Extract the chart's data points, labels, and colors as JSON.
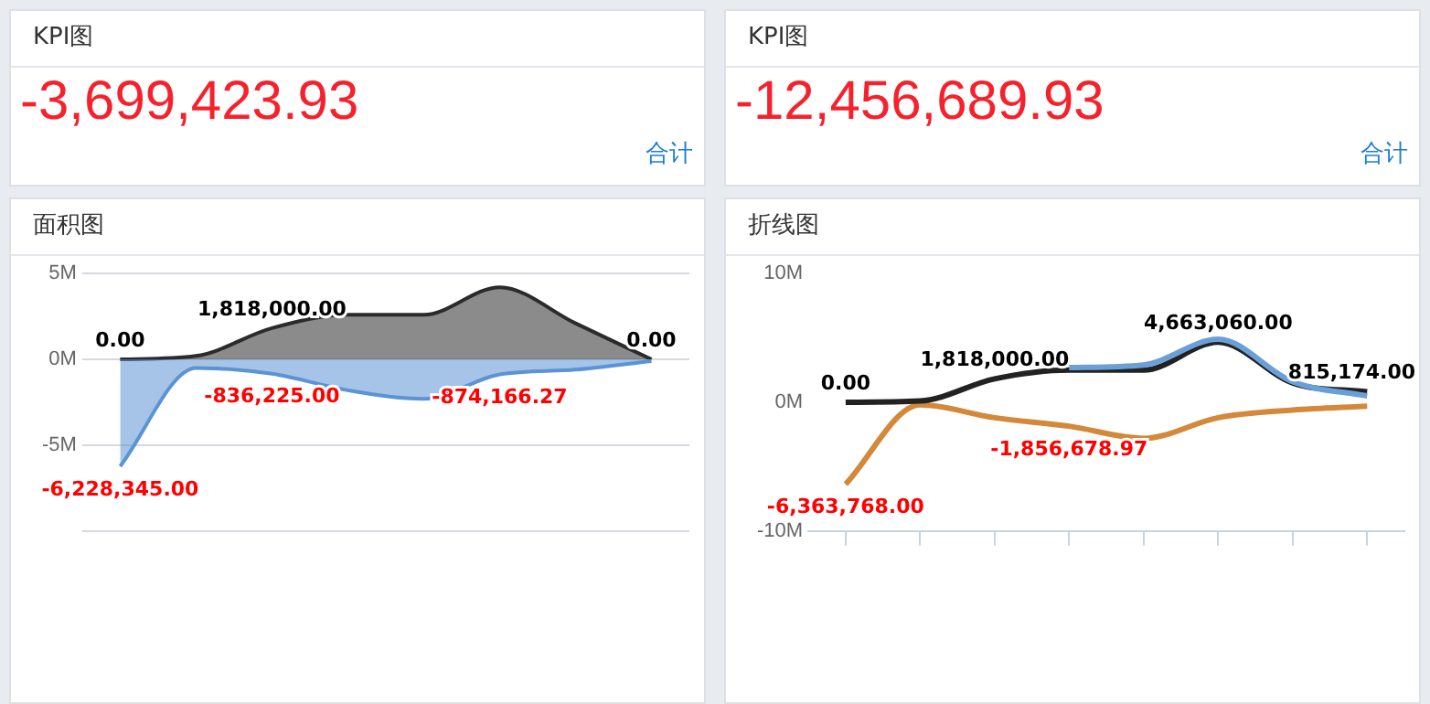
{
  "chart_data": [
    {
      "type": "other",
      "title": "KPI图",
      "annotations": [
        "-3,699,423.93",
        "合计"
      ]
    },
    {
      "type": "other",
      "title": "KPI图",
      "annotations": [
        "-12,456,689.93",
        "合计"
      ]
    },
    {
      "type": "area",
      "title": "面积图",
      "categories": [
        null,
        null,
        null,
        null,
        null,
        null,
        null,
        null
      ],
      "ylim": [
        -10000000,
        5000000
      ],
      "yticks": [
        {
          "value": -10000000,
          "label": null
        },
        {
          "value": -5000000,
          "label": "-5M"
        },
        {
          "value": 0,
          "label": "0M"
        },
        {
          "value": 5000000,
          "label": "5M"
        }
      ],
      "grid": "y",
      "tick_labels": "y",
      "series": [
        {
          "color": "#5b93d3",
          "values": [
            -6228345,
            -500000,
            -836225,
            -1800000,
            -2300000,
            -874166.27,
            -600000,
            -100000
          ],
          "value_labels": [
            "-6,228,345.00",
            null,
            "-836,225.00",
            null,
            null,
            "-874,166.27",
            null,
            null
          ]
        },
        {
          "color": "#2b2b2b",
          "values": [
            0,
            200000,
            1818000,
            2600000,
            2600000,
            4200000,
            2100000,
            0
          ],
          "value_labels": [
            "0.00",
            null,
            "1,818,000.00",
            null,
            null,
            null,
            null,
            "0.00"
          ]
        }
      ]
    },
    {
      "type": "line",
      "title": "折线图",
      "categories": [
        null,
        null,
        null,
        null,
        null,
        null,
        null,
        null
      ],
      "ylim": [
        -10000000,
        10000000
      ],
      "yticks": [
        {
          "value": -10000000,
          "label": "-10M"
        },
        {
          "value": 0,
          "label": "0M"
        },
        {
          "value": 10000000,
          "label": "10M"
        }
      ],
      "grid": false,
      "tick_labels": "y",
      "series": [
        {
          "color": "#6a9fd8",
          "values": [
            null,
            null,
            null,
            2700000,
            2900000,
            4900000,
            1600000,
            500000
          ]
        },
        {
          "color": "#222222",
          "values": [
            0,
            100000,
            1818000,
            2500000,
            2500000,
            4663060,
            1500000,
            815174
          ],
          "value_labels": [
            "0.00",
            null,
            "1,818,000.00",
            null,
            null,
            "4,663,060.00",
            null,
            "815,174.00"
          ]
        },
        {
          "color": "#d4883a",
          "values": [
            -6363768,
            -200000,
            -1200000,
            -1856678.97,
            -2800000,
            -1200000,
            -600000,
            -300000
          ],
          "value_labels": [
            "-6,363,768.00",
            null,
            null,
            "-1,856,678.97",
            null,
            null,
            null,
            null
          ]
        }
      ]
    }
  ]
}
